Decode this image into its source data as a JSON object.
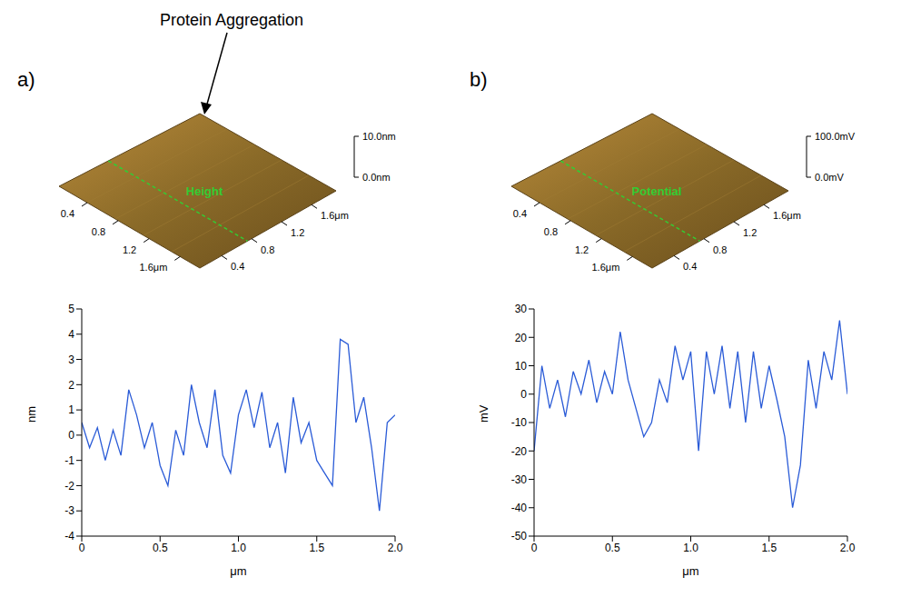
{
  "panels": [
    {
      "letter": "a)",
      "annotation": "Protein Aggregation",
      "surface": {
        "label": "Height",
        "z_labels": [
          "10.0nm",
          "0.0nm"
        ],
        "left_ticks": [
          "0.4",
          "0.8",
          "1.2",
          "1.6μm"
        ],
        "right_ticks": [
          "0.4",
          "0.8",
          "1.2",
          "1.6μm"
        ]
      }
    },
    {
      "letter": "b)",
      "surface": {
        "label": "Potential",
        "z_labels": [
          "100.0mV",
          "0.0mV"
        ],
        "left_ticks": [
          "0.4",
          "0.8",
          "1.2",
          "1.6μm"
        ],
        "right_ticks": [
          "0.4",
          "0.8",
          "1.2",
          "1.6μm"
        ]
      }
    }
  ],
  "chart_data": [
    {
      "type": "line",
      "xlabel": "μm",
      "ylabel": "nm",
      "color": "#2a5bd7",
      "x": [
        0,
        0.05,
        0.1,
        0.15,
        0.2,
        0.25,
        0.3,
        0.35,
        0.4,
        0.45,
        0.5,
        0.55,
        0.6,
        0.65,
        0.7,
        0.75,
        0.8,
        0.85,
        0.9,
        0.95,
        1.0,
        1.05,
        1.1,
        1.15,
        1.2,
        1.25,
        1.3,
        1.35,
        1.4,
        1.45,
        1.5,
        1.55,
        1.6,
        1.65,
        1.7,
        1.75,
        1.8,
        1.85,
        1.9,
        1.95,
        2.0
      ],
      "values": [
        0.5,
        -0.5,
        0.3,
        -1,
        0.2,
        -0.8,
        1.8,
        0.8,
        -0.5,
        0.5,
        -1.2,
        -2,
        0.2,
        -0.8,
        2,
        0.5,
        -0.5,
        1.8,
        -0.8,
        -1.5,
        0.8,
        1.8,
        0.3,
        1.7,
        -0.5,
        0.5,
        -1.5,
        1.5,
        -0.3,
        0.5,
        -1,
        -1.5,
        -2,
        3.8,
        3.6,
        0.5,
        1.5,
        -0.5,
        -3,
        0.5,
        0.8
      ],
      "xlim": [
        0,
        2
      ],
      "xticks": [
        0,
        0.5,
        {
          "value": 1,
          "label": "1.0"
        },
        1.5,
        {
          "value": 2,
          "label": "2.0"
        }
      ],
      "ylim": [
        -4,
        5
      ],
      "yticks": [
        -4,
        -3,
        -2,
        -1,
        0,
        1,
        2,
        3,
        4,
        5
      ]
    },
    {
      "type": "line",
      "xlabel": "μm",
      "ylabel": "mV",
      "color": "#2a5bd7",
      "x": [
        0,
        0.05,
        0.1,
        0.15,
        0.2,
        0.25,
        0.3,
        0.35,
        0.4,
        0.45,
        0.5,
        0.55,
        0.6,
        0.65,
        0.7,
        0.75,
        0.8,
        0.85,
        0.9,
        0.95,
        1.0,
        1.05,
        1.1,
        1.15,
        1.2,
        1.25,
        1.3,
        1.35,
        1.4,
        1.45,
        1.5,
        1.55,
        1.6,
        1.65,
        1.7,
        1.75,
        1.8,
        1.85,
        1.9,
        1.95,
        2.0
      ],
      "values": [
        -20,
        10,
        -5,
        5,
        -8,
        8,
        0,
        12,
        -3,
        8,
        0,
        22,
        5,
        -5,
        -15,
        -10,
        5,
        -3,
        17,
        5,
        15,
        -20,
        15,
        0,
        17,
        -5,
        15,
        -10,
        15,
        -5,
        10,
        -2,
        -15,
        -40,
        -25,
        12,
        -5,
        15,
        5,
        26,
        0
      ],
      "xlim": [
        0,
        2
      ],
      "xticks": [
        0,
        0.5,
        {
          "value": 1,
          "label": "1.0"
        },
        1.5,
        {
          "value": 2,
          "label": "2.0"
        }
      ],
      "ylim": [
        -50,
        30
      ],
      "yticks": [
        -50,
        -40,
        -30,
        -20,
        -10,
        0,
        10,
        20,
        30
      ]
    }
  ]
}
